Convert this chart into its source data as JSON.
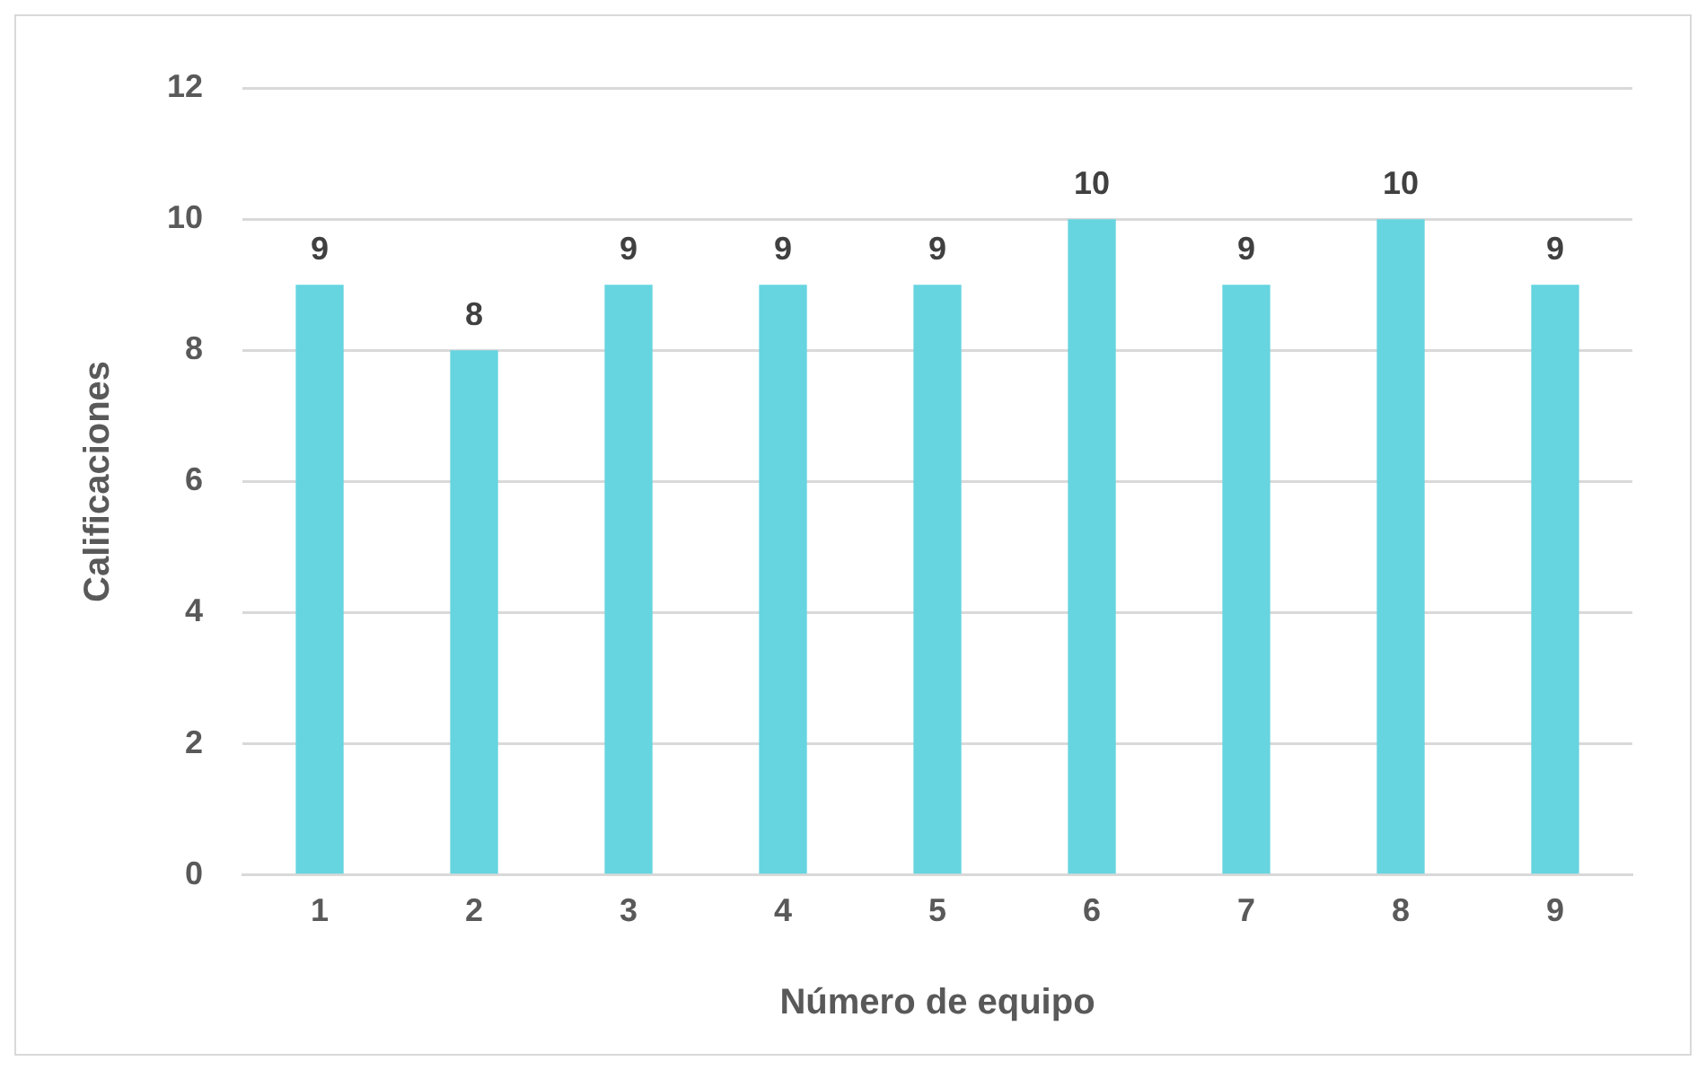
{
  "chart_data": {
    "type": "bar",
    "xlabel": "Número de equipo",
    "ylabel": "Calificaciones",
    "categories": [
      "1",
      "2",
      "3",
      "4",
      "5",
      "6",
      "7",
      "8",
      "9"
    ],
    "values": [
      9,
      8,
      9,
      9,
      9,
      10,
      9,
      10,
      9
    ],
    "color": "#66d5e0",
    "ylim": [
      0,
      12
    ],
    "yticks": [
      0,
      2,
      4,
      6,
      8,
      10,
      12
    ],
    "grid": "y",
    "data_labels": true,
    "legend": false
  }
}
